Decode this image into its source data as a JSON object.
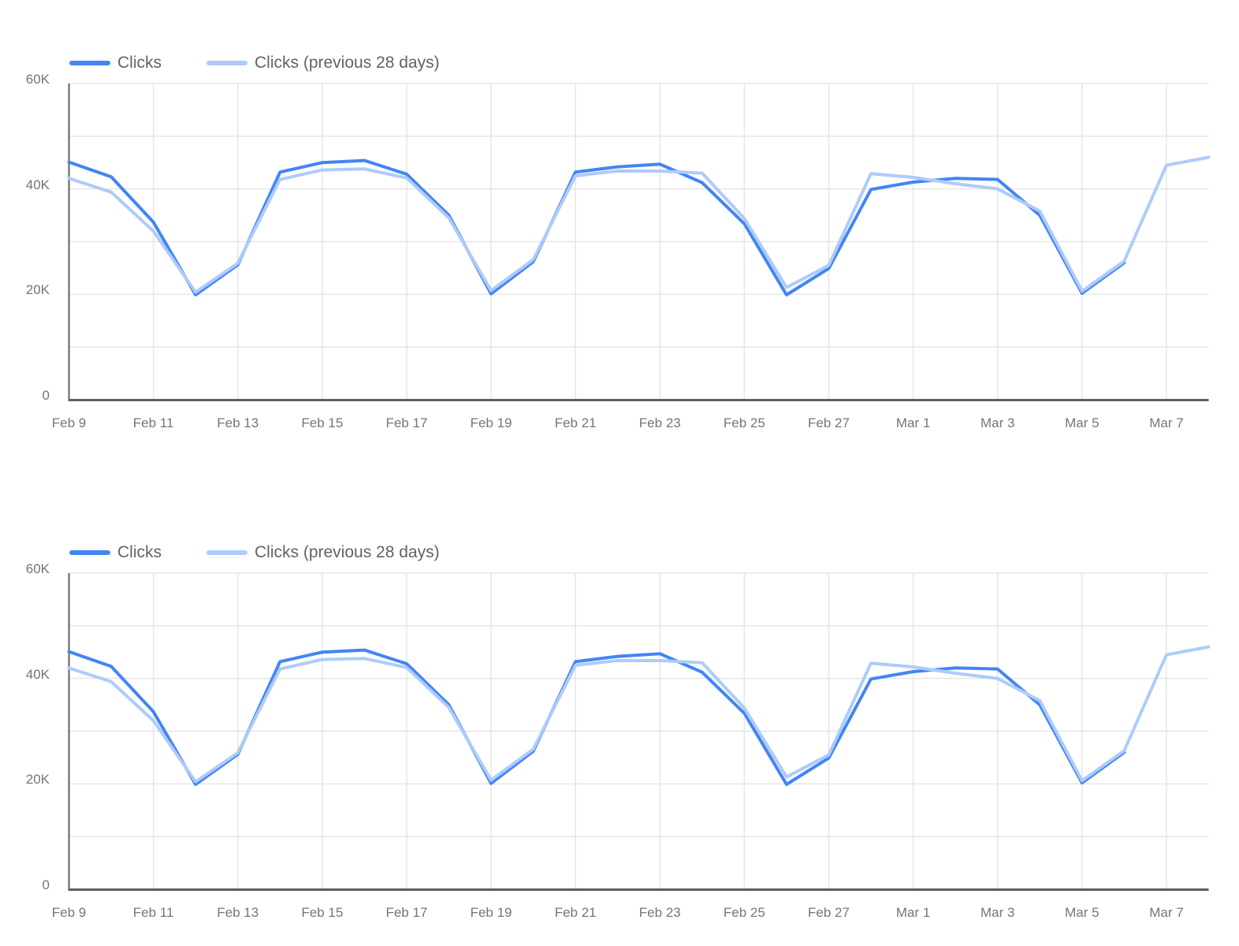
{
  "accent_colors": {
    "clicks_line": "#4285f4",
    "clicks_previous_line": "#aecbfa",
    "grid_line": "#e6e6e6",
    "axis_line": "#5f5f5f",
    "axis_label_text": "#757575",
    "legend_text": "#5f6368"
  },
  "chart_data": [
    {
      "type": "line",
      "title": "",
      "xlabel": "",
      "ylabel": "",
      "x": [
        "Feb 9",
        "Feb 10",
        "Feb 11",
        "Feb 12",
        "Feb 13",
        "Feb 14",
        "Feb 15",
        "Feb 16",
        "Feb 17",
        "Feb 18",
        "Feb 19",
        "Feb 20",
        "Feb 21",
        "Feb 22",
        "Feb 23",
        "Feb 24",
        "Feb 25",
        "Feb 26",
        "Feb 27",
        "Feb 28",
        "Mar 1",
        "Mar 2",
        "Mar 3",
        "Mar 4",
        "Mar 5",
        "Mar 6",
        "Mar 7",
        "Mar 8"
      ],
      "x_tick_labels": [
        "Feb 9",
        "Feb 11",
        "Feb 13",
        "Feb 15",
        "Feb 17",
        "Feb 19",
        "Feb 21",
        "Feb 23",
        "Feb 25",
        "Feb 27",
        "Mar 1",
        "Mar 3",
        "Mar 5",
        "Mar 7"
      ],
      "x_tick_every": 2,
      "ylim": [
        0,
        60000
      ],
      "y_grid_interval": 10000,
      "yticks": [
        {
          "value": 0,
          "label": "0"
        },
        {
          "value": 20000,
          "label": "20K"
        },
        {
          "value": 40000,
          "label": "40K"
        },
        {
          "value": 60000,
          "label": "60K"
        }
      ],
      "grid": true,
      "legend_position": "top-left",
      "series": [
        {
          "name": "Clicks",
          "color": "#4285f4",
          "values": [
            45100,
            42300,
            33700,
            19900,
            25600,
            43200,
            45000,
            45400,
            42800,
            35000,
            20100,
            26200,
            43200,
            44200,
            44700,
            41200,
            33400,
            19900,
            24900,
            39900,
            41300,
            42000,
            41800,
            35000,
            20200,
            26000,
            null,
            null
          ]
        },
        {
          "name": "Clicks (previous 28 days)",
          "color": "#aecbfa",
          "values": [
            42000,
            39400,
            32000,
            20400,
            25900,
            41800,
            43600,
            43800,
            42100,
            34500,
            20700,
            26600,
            42500,
            43400,
            43400,
            43000,
            34400,
            21300,
            25500,
            42900,
            42200,
            41000,
            40000,
            35800,
            20600,
            26300,
            44500,
            46000
          ]
        }
      ]
    },
    {
      "type": "line",
      "title": "",
      "xlabel": "",
      "ylabel": "",
      "x": [
        "Feb 9",
        "Feb 10",
        "Feb 11",
        "Feb 12",
        "Feb 13",
        "Feb 14",
        "Feb 15",
        "Feb 16",
        "Feb 17",
        "Feb 18",
        "Feb 19",
        "Feb 20",
        "Feb 21",
        "Feb 22",
        "Feb 23",
        "Feb 24",
        "Feb 25",
        "Feb 26",
        "Feb 27",
        "Feb 28",
        "Mar 1",
        "Mar 2",
        "Mar 3",
        "Mar 4",
        "Mar 5",
        "Mar 6",
        "Mar 7",
        "Mar 8"
      ],
      "x_tick_labels": [
        "Feb 9",
        "Feb 11",
        "Feb 13",
        "Feb 15",
        "Feb 17",
        "Feb 19",
        "Feb 21",
        "Feb 23",
        "Feb 25",
        "Feb 27",
        "Mar 1",
        "Mar 3",
        "Mar 5",
        "Mar 7"
      ],
      "x_tick_every": 2,
      "ylim": [
        0,
        60000
      ],
      "y_grid_interval": 10000,
      "yticks": [
        {
          "value": 0,
          "label": "0"
        },
        {
          "value": 20000,
          "label": "20K"
        },
        {
          "value": 40000,
          "label": "40K"
        },
        {
          "value": 60000,
          "label": "60K"
        }
      ],
      "grid": true,
      "legend_position": "top-left",
      "series": [
        {
          "name": "Clicks",
          "color": "#4285f4",
          "values": [
            45100,
            42300,
            33700,
            19900,
            25600,
            43200,
            45000,
            45400,
            42800,
            35000,
            20100,
            26200,
            43200,
            44200,
            44700,
            41200,
            33400,
            19900,
            24900,
            39900,
            41300,
            42000,
            41800,
            35000,
            20200,
            26000,
            null,
            null
          ]
        },
        {
          "name": "Clicks (previous 28 days)",
          "color": "#aecbfa",
          "values": [
            42000,
            39400,
            32000,
            20400,
            25900,
            41800,
            43600,
            43800,
            42100,
            34500,
            20700,
            26600,
            42500,
            43400,
            43400,
            43000,
            34400,
            21300,
            25500,
            42900,
            42200,
            41000,
            40000,
            35800,
            20600,
            26300,
            44500,
            46000
          ]
        }
      ]
    }
  ]
}
